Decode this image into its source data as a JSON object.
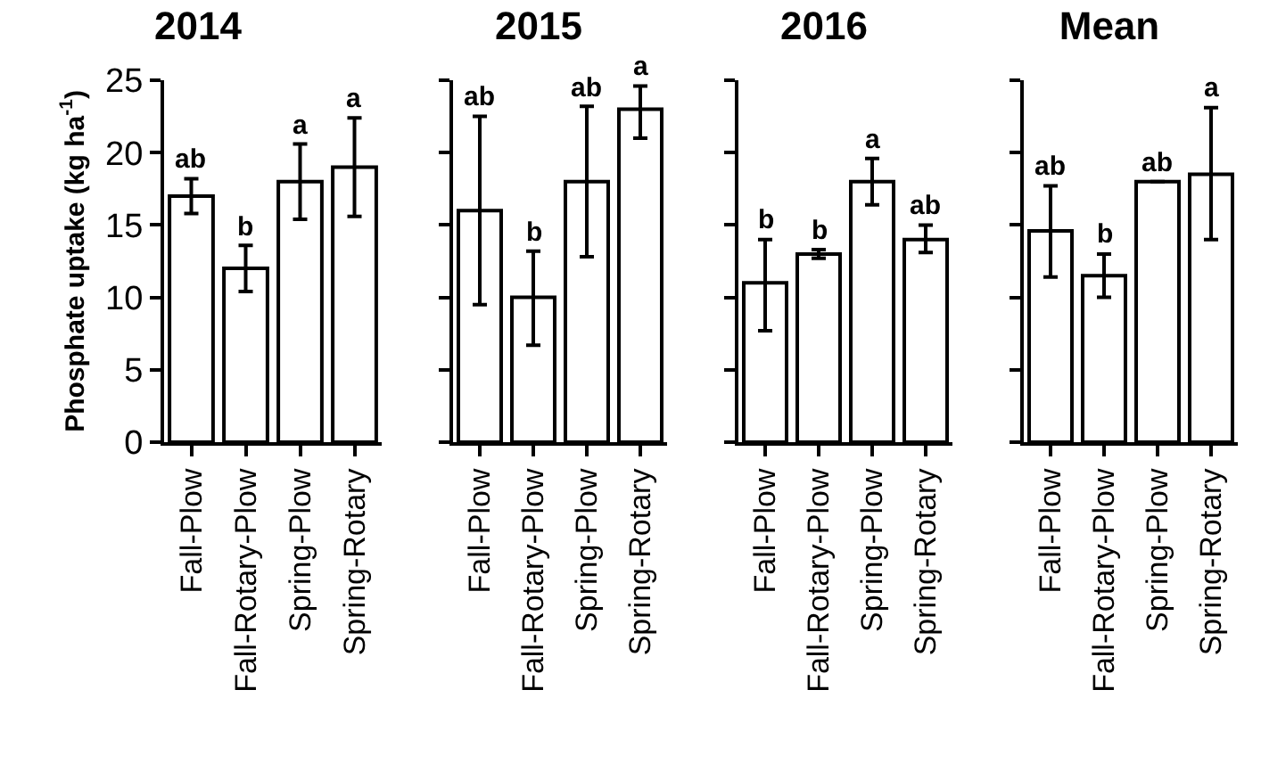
{
  "chart_data": [
    {
      "type": "bar",
      "title": "2014",
      "ylabel": "Phosphate uptake (kg ha$^{-1}$)",
      "categories": [
        "Fall-Plow",
        "Fall-Rotary-Plow",
        "Spring-Plow",
        "Spring-Rotary"
      ],
      "values": [
        17,
        12,
        18,
        19
      ],
      "errors": [
        [
          15.8,
          18.2
        ],
        [
          10.4,
          13.6
        ],
        [
          15.4,
          20.6
        ],
        [
          15.6,
          22.4
        ]
      ],
      "color": "#ffffff",
      "ylim": [
        0,
        25
      ],
      "yticks": [
        0,
        5,
        10,
        15,
        20,
        25
      ],
      "annotations": [
        {
          "text": "ab",
          "x": "Fall-Plow",
          "y": 18.2
        },
        {
          "text": "b",
          "x": "Fall-Rotary-Plow",
          "y": 13.6
        },
        {
          "text": "a",
          "x": "Spring-Plow",
          "y": 20.6
        },
        {
          "text": "a",
          "x": "Spring-Rotary",
          "y": 22.4
        }
      ]
    },
    {
      "type": "bar",
      "title": "2015",
      "categories": [
        "Fall-Plow",
        "Fall-Rotary-Plow",
        "Spring-Plow",
        "Spring-Rotary"
      ],
      "values": [
        16,
        10,
        18,
        23
      ],
      "errors": [
        [
          9.5,
          22.5
        ],
        [
          6.7,
          13.2
        ],
        [
          12.8,
          23.2
        ],
        [
          21,
          24.6
        ]
      ],
      "color": "#ffffff",
      "ylim": [
        0,
        25
      ],
      "yticks": [
        {
          "value": 0,
          "label": null
        },
        {
          "value": 5,
          "label": null
        },
        {
          "value": 10,
          "label": null
        },
        {
          "value": 15,
          "label": null
        },
        {
          "value": 20,
          "label": null
        },
        {
          "value": 25,
          "label": null
        }
      ],
      "tick_labels": "x",
      "annotations": [
        {
          "text": "ab",
          "x": "Fall-Plow",
          "y": 22.5
        },
        {
          "text": "b",
          "x": "Fall-Rotary-Plow",
          "y": 13.2
        },
        {
          "text": "ab",
          "x": "Spring-Plow",
          "y": 23.2
        },
        {
          "text": "a",
          "x": "Spring-Rotary",
          "y": 24.6
        }
      ]
    },
    {
      "type": "bar",
      "title": "2016",
      "categories": [
        "Fall-Plow",
        "Fall-Rotary-Plow",
        "Spring-Plow",
        "Spring-Rotary"
      ],
      "values": [
        11,
        13,
        18,
        14
      ],
      "errors": [
        [
          7.7,
          14
        ],
        [
          12.7,
          13.3
        ],
        [
          16.4,
          19.6
        ],
        [
          13.1,
          15
        ]
      ],
      "color": "#ffffff",
      "ylim": [
        0,
        25
      ],
      "yticks": [
        {
          "value": 0,
          "label": null
        },
        {
          "value": 5,
          "label": null
        },
        {
          "value": 10,
          "label": null
        },
        {
          "value": 15,
          "label": null
        },
        {
          "value": 20,
          "label": null
        },
        {
          "value": 25,
          "label": null
        }
      ],
      "tick_labels": "x",
      "annotations": [
        {
          "text": "b",
          "x": "Fall-Plow",
          "y": 14
        },
        {
          "text": "b",
          "x": "Fall-Rotary-Plow",
          "y": 13.3
        },
        {
          "text": "a",
          "x": "Spring-Plow",
          "y": 19.6
        },
        {
          "text": "ab",
          "x": "Spring-Rotary",
          "y": 15
        }
      ]
    },
    {
      "type": "bar",
      "title": "Mean",
      "categories": [
        "Fall-Plow",
        "Fall-Rotary-Plow",
        "Spring-Plow",
        "Spring-Rotary"
      ],
      "values": [
        14.6,
        11.5,
        18,
        18.5
      ],
      "errors": [
        [
          11.4,
          17.7
        ],
        [
          10,
          13
        ],
        null,
        [
          14,
          23.1
        ]
      ],
      "color": "#ffffff",
      "ylim": [
        0,
        25
      ],
      "yticks": [
        {
          "value": 0,
          "label": null
        },
        {
          "value": 5,
          "label": null
        },
        {
          "value": 10,
          "label": null
        },
        {
          "value": 15,
          "label": null
        },
        {
          "value": 20,
          "label": null
        },
        {
          "value": 25,
          "label": null
        }
      ],
      "tick_labels": "x",
      "annotations": [
        {
          "text": "ab",
          "x": "Fall-Plow",
          "y": 17.7
        },
        {
          "text": "b",
          "x": "Fall-Rotary-Plow",
          "y": 13
        },
        {
          "text": "ab",
          "x": "Spring-Plow",
          "y": 18
        },
        {
          "text": "a",
          "x": "Spring-Rotary",
          "y": 23.1
        }
      ]
    }
  ]
}
